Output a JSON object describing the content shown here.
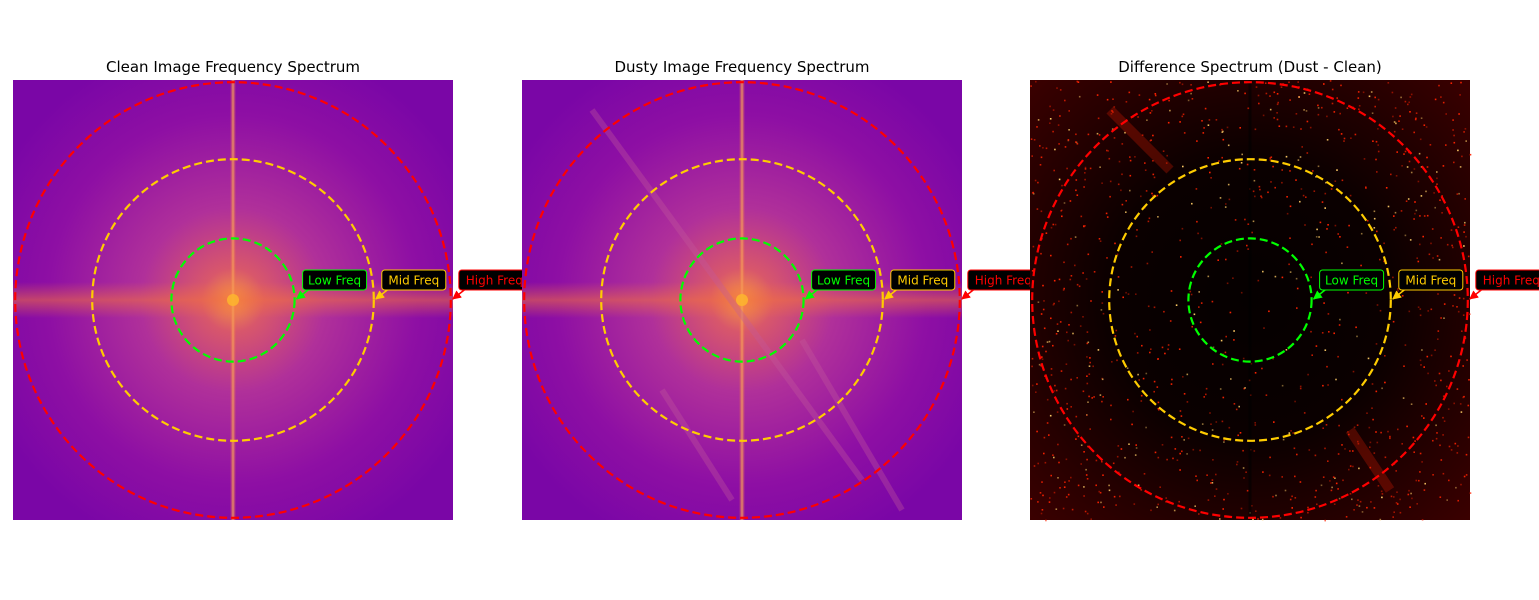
{
  "chart_data": [
    {
      "type": "heatmap",
      "title": "Clean Image Frequency Spectrum",
      "colormap": "plasma",
      "grid": false,
      "rings": [
        {
          "name": "Low Freq",
          "color": "#00ff00",
          "radius": 0.28
        },
        {
          "name": "Mid Freq",
          "color": "#ffcc00",
          "radius": 0.64
        },
        {
          "name": "High Freq",
          "color": "#ff0000",
          "radius": 0.99
        }
      ]
    },
    {
      "type": "heatmap",
      "title": "Dusty Image Frequency Spectrum",
      "colormap": "plasma",
      "grid": false,
      "rings": [
        {
          "name": "Low Freq",
          "color": "#00ff00",
          "radius": 0.28
        },
        {
          "name": "Mid Freq",
          "color": "#ffcc00",
          "radius": 0.64
        },
        {
          "name": "High Freq",
          "color": "#ff0000",
          "radius": 0.99
        }
      ]
    },
    {
      "type": "heatmap",
      "title": "Difference Spectrum (Dust - Clean)",
      "colormap": "hot",
      "grid": false,
      "rings": [
        {
          "name": "Low Freq",
          "color": "#00ff00",
          "radius": 0.28
        },
        {
          "name": "Mid Freq",
          "color": "#ffcc00",
          "radius": 0.64
        },
        {
          "name": "High Freq",
          "color": "#ff0000",
          "radius": 0.99
        }
      ]
    }
  ],
  "colors": {
    "plasma_outer": "#7a06a6",
    "plasma_mid": "#b0309a",
    "plasma_center": "#f89540",
    "hot_background": "#0c0000",
    "hot_speckle": "#ff2200",
    "label_background": "#000000"
  }
}
